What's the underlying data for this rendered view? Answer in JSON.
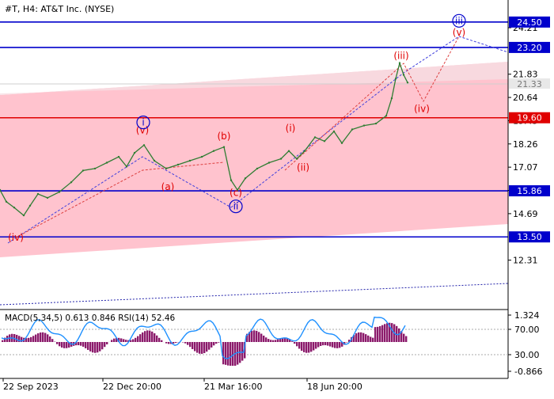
{
  "chart_data": {
    "type": "line",
    "title": "#T, H4:  AT&T Inc. (NYSE)",
    "price_axis": {
      "ticks": [
        "24.21",
        "21.83",
        "20.64",
        "19.45",
        "18.26",
        "17.07",
        "15.88",
        "14.69",
        "12.31"
      ],
      "tick_values": [
        24.21,
        21.83,
        20.64,
        19.45,
        18.26,
        17.07,
        15.88,
        14.69,
        12.31
      ],
      "range": [
        11.4,
        25.2
      ]
    },
    "levels": [
      {
        "value": 24.5,
        "label": "24.50",
        "color": "#0000cc"
      },
      {
        "value": 23.2,
        "label": "23.20",
        "color": "#0000cc"
      },
      {
        "value": 19.6,
        "label": "19.60",
        "color": "#e00000"
      },
      {
        "value": 15.86,
        "label": "15.86",
        "color": "#0000cc"
      },
      {
        "value": 13.5,
        "label": "13.50",
        "color": "#0000cc"
      }
    ],
    "current_price": {
      "value": 21.33,
      "label": "21.33"
    },
    "time_axis": [
      "22 Sep 2023",
      "22 Dec 20:00",
      "21 Mar 16:00",
      "18 Jun 20:00"
    ],
    "price_series": [
      [
        0,
        15.9
      ],
      [
        8,
        15.3
      ],
      [
        18,
        15.0
      ],
      [
        30,
        14.6
      ],
      [
        38,
        15.1
      ],
      [
        48,
        15.7
      ],
      [
        60,
        15.5
      ],
      [
        75,
        15.8
      ],
      [
        90,
        16.3
      ],
      [
        105,
        16.9
      ],
      [
        120,
        17.0
      ],
      [
        135,
        17.3
      ],
      [
        150,
        17.6
      ],
      [
        160,
        17.1
      ],
      [
        170,
        17.8
      ],
      [
        182,
        18.2
      ],
      [
        195,
        17.4
      ],
      [
        210,
        17.0
      ],
      [
        225,
        17.2
      ],
      [
        240,
        17.4
      ],
      [
        255,
        17.6
      ],
      [
        270,
        17.9
      ],
      [
        283,
        18.1
      ],
      [
        292,
        16.4
      ],
      [
        300,
        15.9
      ],
      [
        310,
        16.5
      ],
      [
        325,
        17.0
      ],
      [
        340,
        17.3
      ],
      [
        355,
        17.5
      ],
      [
        365,
        17.9
      ],
      [
        375,
        17.5
      ],
      [
        385,
        17.9
      ],
      [
        398,
        18.6
      ],
      [
        410,
        18.4
      ],
      [
        422,
        18.9
      ],
      [
        432,
        18.3
      ],
      [
        445,
        19.0
      ],
      [
        460,
        19.2
      ],
      [
        475,
        19.3
      ],
      [
        488,
        19.7
      ],
      [
        495,
        20.6
      ],
      [
        500,
        21.6
      ],
      [
        505,
        22.4
      ],
      [
        510,
        21.8
      ],
      [
        515,
        21.4
      ]
    ],
    "wave_labels": [
      {
        "text": "(iv)",
        "color": "#e00000",
        "price": 13.3,
        "x": 20
      },
      {
        "text": "(v)",
        "color": "#e00000",
        "price": 18.8,
        "x": 180
      },
      {
        "text": "i",
        "color": "#0000cc",
        "price": 19.2,
        "x": 181,
        "circled": true
      },
      {
        "text": "(a)",
        "color": "#e00000",
        "price": 15.9,
        "x": 212
      },
      {
        "text": "(b)",
        "color": "#e00000",
        "price": 18.5,
        "x": 283
      },
      {
        "text": "(c)",
        "color": "#e00000",
        "price": 15.6,
        "x": 298
      },
      {
        "text": "ii",
        "color": "#0000cc",
        "price": 14.9,
        "x": 298,
        "circled": true
      },
      {
        "text": "(i)",
        "color": "#e00000",
        "price": 18.9,
        "x": 367
      },
      {
        "text": "(ii)",
        "color": "#e00000",
        "price": 16.9,
        "x": 383
      },
      {
        "text": "(iii)",
        "color": "#e00000",
        "price": 22.6,
        "x": 507
      },
      {
        "text": "(iv)",
        "color": "#e00000",
        "price": 19.9,
        "x": 533
      },
      {
        "text": "(v)",
        "color": "#e00000",
        "price": 23.8,
        "x": 580
      },
      {
        "text": "iii",
        "color": "#0000cc",
        "price": 24.4,
        "x": 580,
        "circled": true
      }
    ],
    "indicator": {
      "label": "MACD(5,34,5) 0.613 0.846 RSI(14) 52.46",
      "ticks": [
        "1.324",
        "70.00",
        "30.00",
        "-0.866"
      ]
    },
    "colors": {
      "channel": "#ffc0cb",
      "price_line": "#2e7d32",
      "macd_hist": "#8b1a6b",
      "rsi": "#1e90ff"
    }
  }
}
